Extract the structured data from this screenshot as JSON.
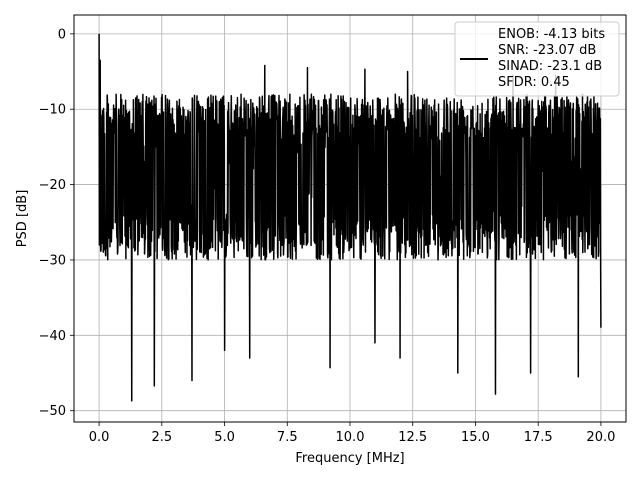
{
  "chart_data": {
    "type": "line",
    "title": "",
    "xlabel": "Frequency [MHz]",
    "ylabel": "PSD [dB]",
    "xlim": [
      -1.0,
      21.0
    ],
    "ylim": [
      -51.5,
      2.5
    ],
    "xticks": [
      0.0,
      2.5,
      5.0,
      7.5,
      10.0,
      12.5,
      15.0,
      17.5,
      20.0
    ],
    "xtick_labels": [
      "0.0",
      "2.5",
      "5.0",
      "7.5",
      "10.0",
      "12.5",
      "15.0",
      "17.5",
      "20.0"
    ],
    "yticks": [
      0,
      -10,
      -20,
      -30,
      -40,
      -50
    ],
    "ytick_labels": [
      "0",
      "−10",
      "−20",
      "−30",
      "−40",
      "−50"
    ],
    "grid": true,
    "legend_position": "top-right",
    "legend": [
      "ENOB: -4.13 bits",
      "SNR: -23.07 dB",
      "SINAD: -23.1 dB",
      "SFDR: 0.45"
    ],
    "series": [
      {
        "color": "#000000",
        "x_range": [
          0.0,
          20.0
        ],
        "peak": {
          "x": 0.0,
          "y": 0.0
        },
        "typical_upper_envelope": -8,
        "typical_lower_envelope": -30,
        "notable_minima": [
          {
            "x": 1.3,
            "y": -48.7
          },
          {
            "x": 2.2,
            "y": -46.7
          },
          {
            "x": 3.7,
            "y": -46.0
          },
          {
            "x": 5.0,
            "y": -42.0
          },
          {
            "x": 6.0,
            "y": -43.0
          },
          {
            "x": 9.2,
            "y": -44.3
          },
          {
            "x": 11.0,
            "y": -41.0
          },
          {
            "x": 12.0,
            "y": -43.0
          },
          {
            "x": 14.3,
            "y": -45.0
          },
          {
            "x": 15.8,
            "y": -47.8
          },
          {
            "x": 17.2,
            "y": -45.0
          },
          {
            "x": 19.1,
            "y": -45.5
          },
          {
            "x": 20.0,
            "y": -39.0
          }
        ],
        "notable_maxima": [
          {
            "x": 0.05,
            "y": -3.5
          },
          {
            "x": 6.6,
            "y": -4.2
          },
          {
            "x": 8.3,
            "y": -4.5
          },
          {
            "x": 10.6,
            "y": -4.7
          },
          {
            "x": 12.3,
            "y": -5.0
          },
          {
            "x": 16.5,
            "y": -5.5
          },
          {
            "x": 18.2,
            "y": -5.5
          }
        ]
      }
    ]
  }
}
